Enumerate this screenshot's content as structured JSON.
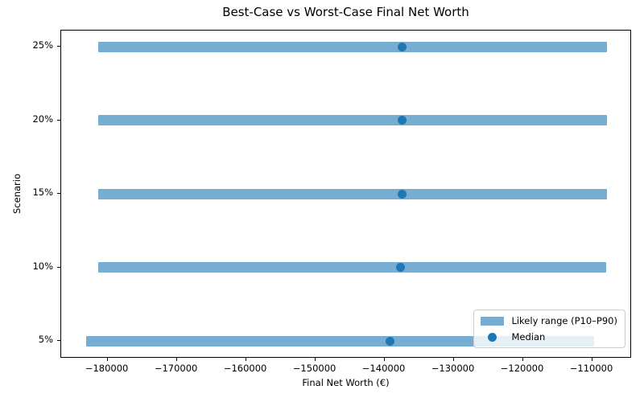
{
  "chart_data": {
    "type": "bar",
    "orientation": "horizontal",
    "title": "Best-Case vs Worst-Case Final Net Worth",
    "xlabel": "Final Net Worth (€)",
    "ylabel": "Scenario",
    "categories": [
      "5%",
      "10%",
      "15%",
      "20%",
      "25%"
    ],
    "series": [
      {
        "name": "P10",
        "values": [
          -183100,
          -181400,
          -181400,
          -181400,
          -181400
        ]
      },
      {
        "name": "Median",
        "values": [
          -139200,
          -137700,
          -137500,
          -137400,
          -137400
        ]
      },
      {
        "name": "P90",
        "values": [
          -109700,
          -108000,
          -107800,
          -107800,
          -107800
        ]
      }
    ],
    "legend": [
      {
        "label": "Likely range (P10–P90)",
        "marker": "bar"
      },
      {
        "label": "Median",
        "marker": "dot"
      }
    ],
    "legend_position": "lower right",
    "grid": false,
    "xlim": [
      -186700,
      -104250
    ],
    "ylim": [
      -0.24,
      4.22
    ],
    "x_ticks": [
      -180000,
      -170000,
      -160000,
      -150000,
      -140000,
      -130000,
      -120000,
      -110000
    ],
    "x_tick_labels": [
      "−180000",
      "−170000",
      "−160000",
      "−150000",
      "−140000",
      "−130000",
      "−120000",
      "−110000"
    ],
    "colors": {
      "bar_fill": "#78add2",
      "median_dot": "#1f77b4",
      "spine": "#000000",
      "legend_border": "#cccccc"
    }
  }
}
